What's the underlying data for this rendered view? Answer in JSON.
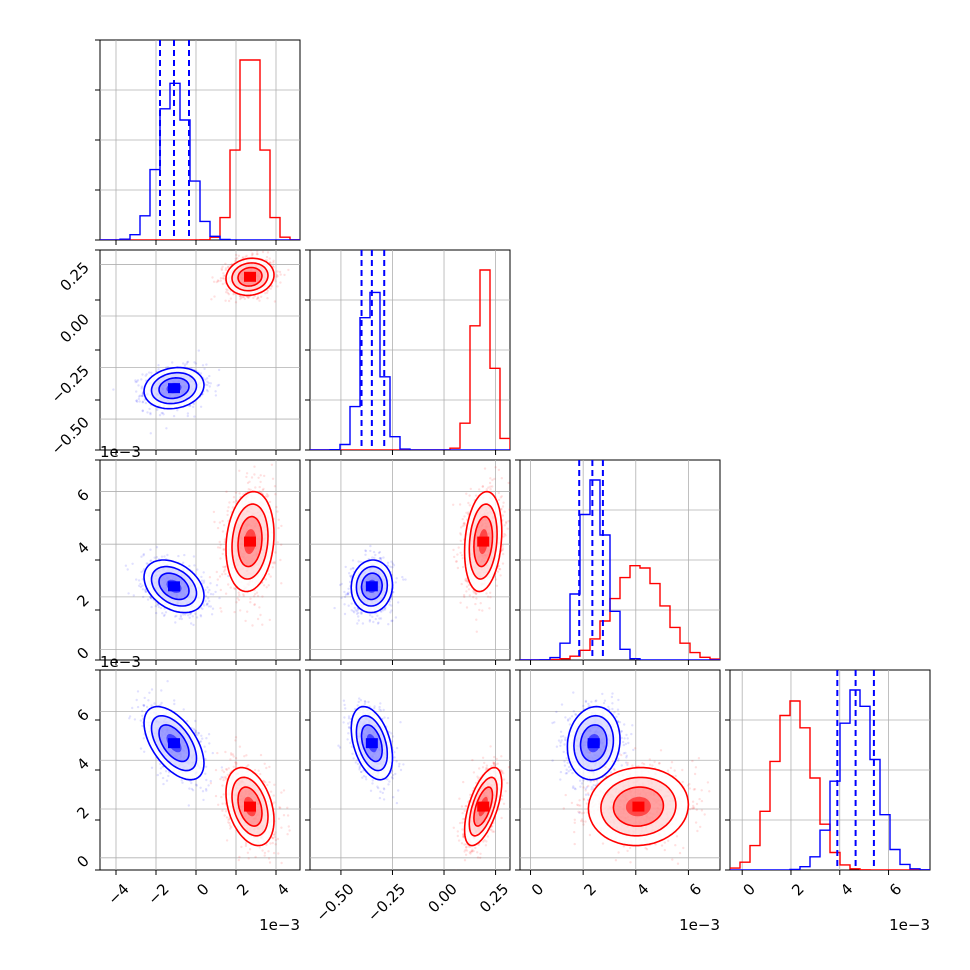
{
  "chart_data": {
    "type": "corner",
    "colors": {
      "series_a": "#0000ff",
      "series_b": "#ff0000"
    },
    "grid": true,
    "parameters": [
      {
        "range": [
          -4.8,
          5.2
        ],
        "ticks": [
          -4,
          -2,
          0,
          2,
          4
        ],
        "tick_labels": [
          "−4",
          "−2",
          "0",
          "2",
          "4"
        ],
        "offset_text": "1e−3"
      },
      {
        "range": [
          -0.65,
          0.32
        ],
        "ticks": [
          -0.5,
          -0.25,
          0.0,
          0.25
        ],
        "tick_labels": [
          "−0.50",
          "−0.25",
          "0.00",
          "0.25"
        ],
        "offset_text": ""
      },
      {
        "range": [
          -0.4,
          7.2
        ],
        "ticks": [
          0,
          2,
          4,
          6
        ],
        "tick_labels": [
          "0",
          "2",
          "4",
          "6"
        ],
        "offset_text": "1e−3"
      },
      {
        "range": [
          -0.5,
          7.7
        ],
        "ticks": [
          0,
          2,
          4,
          6
        ],
        "tick_labels": [
          "0",
          "2",
          "4",
          "6"
        ],
        "offset_text": "1e−3"
      }
    ],
    "series_a": {
      "name": "",
      "mean": [
        -1.1,
        -0.35,
        2.4,
        4.7
      ],
      "std": [
        0.75,
        0.05,
        0.5,
        0.75
      ],
      "quantiles": [
        [
          -1.8,
          -1.1,
          -0.35
        ],
        [
          -0.4,
          -0.35,
          -0.29
        ],
        [
          1.85,
          2.35,
          2.75
        ],
        [
          3.9,
          4.65,
          5.4
        ]
      ],
      "correlation": [
        [
          1.0,
          0.15,
          -0.35,
          -0.55
        ],
        [
          0.15,
          1.0,
          0.05,
          -0.4
        ],
        [
          -0.35,
          0.05,
          1.0,
          0.1
        ],
        [
          -0.55,
          -0.4,
          0.1,
          1.0
        ]
      ]
    },
    "series_b": {
      "name": "",
      "mean": [
        2.7,
        0.19,
        4.1,
        2.1
      ],
      "std": [
        0.6,
        0.045,
        0.95,
        0.8
      ],
      "quantiles": [],
      "correlation": [
        [
          1.0,
          0.1,
          0.15,
          -0.35
        ],
        [
          0.1,
          1.0,
          0.2,
          0.6
        ],
        [
          0.15,
          0.2,
          1.0,
          0.05
        ],
        [
          -0.35,
          0.6,
          0.05,
          1.0
        ]
      ]
    }
  }
}
